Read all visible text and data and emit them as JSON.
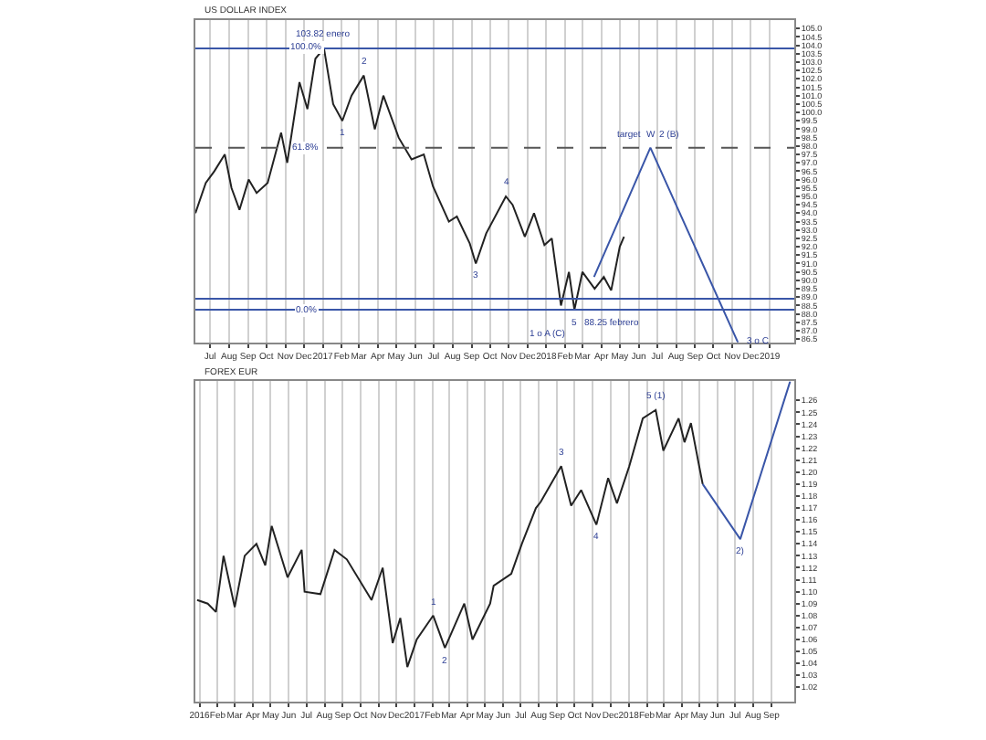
{
  "chart_data": [
    {
      "type": "line",
      "title": "US DOLLAR INDEX",
      "grid": "x",
      "xlim": [
        "2016-06-07",
        "2019-02-10"
      ],
      "ylim": [
        86.3,
        105.5
      ],
      "xticks": [
        {
          "value": "2016-07-01",
          "label": "Jul"
        },
        {
          "value": "2016-08-01",
          "label": "Aug"
        },
        {
          "value": "2016-09-01",
          "label": "Sep"
        },
        {
          "value": "2016-10-01",
          "label": "Oct"
        },
        {
          "value": "2016-11-01",
          "label": "Nov"
        },
        {
          "value": "2016-12-01",
          "label": "Dec"
        },
        {
          "value": "2017-01-01",
          "label": "2017"
        },
        {
          "value": "2017-02-01",
          "label": "Feb"
        },
        {
          "value": "2017-03-01",
          "label": "Mar"
        },
        {
          "value": "2017-04-01",
          "label": "Apr"
        },
        {
          "value": "2017-05-01",
          "label": "May"
        },
        {
          "value": "2017-06-01",
          "label": "Jun"
        },
        {
          "value": "2017-07-01",
          "label": "Jul"
        },
        {
          "value": "2017-08-01",
          "label": "Aug"
        },
        {
          "value": "2017-09-01",
          "label": "Sep"
        },
        {
          "value": "2017-10-01",
          "label": "Oct"
        },
        {
          "value": "2017-11-01",
          "label": "Nov"
        },
        {
          "value": "2017-12-01",
          "label": "Dec"
        },
        {
          "value": "2018-01-01",
          "label": "2018"
        },
        {
          "value": "2018-02-01",
          "label": "Feb"
        },
        {
          "value": "2018-03-01",
          "label": "Mar"
        },
        {
          "value": "2018-04-01",
          "label": "Apr"
        },
        {
          "value": "2018-05-01",
          "label": "May"
        },
        {
          "value": "2018-06-01",
          "label": "Jun"
        },
        {
          "value": "2018-07-01",
          "label": "Jul"
        },
        {
          "value": "2018-08-01",
          "label": "Aug"
        },
        {
          "value": "2018-09-01",
          "label": "Sep"
        },
        {
          "value": "2018-10-01",
          "label": "Oct"
        },
        {
          "value": "2018-11-01",
          "label": "Nov"
        },
        {
          "value": "2018-12-01",
          "label": "Dec"
        },
        {
          "value": "2019-01-01",
          "label": "2019"
        }
      ],
      "yticks": [
        {
          "value": 86.5,
          "label": "86.5"
        },
        {
          "value": 87,
          "label": "87.0"
        },
        {
          "value": 87.5,
          "label": "87.5"
        },
        {
          "value": 88,
          "label": "88.0"
        },
        {
          "value": 88.5,
          "label": "88.5"
        },
        {
          "value": 89,
          "label": "89.0"
        },
        {
          "value": 89.5,
          "label": "89.5"
        },
        {
          "value": 90,
          "label": "90.0"
        },
        {
          "value": 90.5,
          "label": "90.5"
        },
        {
          "value": 91,
          "label": "91.0"
        },
        {
          "value": 91.5,
          "label": "91.5"
        },
        {
          "value": 92,
          "label": "92.0"
        },
        {
          "value": 92.5,
          "label": "92.5"
        },
        {
          "value": 93,
          "label": "93.0"
        },
        {
          "value": 93.5,
          "label": "93.5"
        },
        {
          "value": 94,
          "label": "94.0"
        },
        {
          "value": 94.5,
          "label": "94.5"
        },
        {
          "value": 95,
          "label": "95.0"
        },
        {
          "value": 95.5,
          "label": "95.5"
        },
        {
          "value": 96,
          "label": "96.0"
        },
        {
          "value": 96.5,
          "label": "96.5"
        },
        {
          "value": 97,
          "label": "97.0"
        },
        {
          "value": 97.5,
          "label": "97.5"
        },
        {
          "value": 98,
          "label": "98.0"
        },
        {
          "value": 98.5,
          "label": "98.5"
        },
        {
          "value": 99,
          "label": "99.0"
        },
        {
          "value": 99.5,
          "label": "99.5"
        },
        {
          "value": 100,
          "label": "100.0"
        },
        {
          "value": 100.5,
          "label": "100.5"
        },
        {
          "value": 101,
          "label": "101.0"
        },
        {
          "value": 101.5,
          "label": "101.5"
        },
        {
          "value": 102,
          "label": "102.0"
        },
        {
          "value": 102.5,
          "label": "102.5"
        },
        {
          "value": 103,
          "label": "103.0"
        },
        {
          "value": 103.5,
          "label": "103.5"
        },
        {
          "value": 104,
          "label": "104.0"
        },
        {
          "value": 104.5,
          "label": "104.5"
        },
        {
          "value": 105,
          "label": "105.0"
        }
      ],
      "series": [
        {
          "color": "#222222",
          "x": [
            "2016-06-07",
            "2016-06-24",
            "2016-07-08",
            "2016-07-25",
            "2016-08-05",
            "2016-08-18",
            "2016-09-02",
            "2016-09-15",
            "2016-10-03",
            "2016-10-25",
            "2016-11-04",
            "2016-11-24",
            "2016-12-07",
            "2016-12-20",
            "2017-01-03",
            "2017-01-18",
            "2017-02-02",
            "2017-02-17",
            "2017-03-09",
            "2017-03-27",
            "2017-04-10",
            "2017-05-05",
            "2017-05-26",
            "2017-06-15",
            "2017-06-30",
            "2017-07-26",
            "2017-08-08",
            "2017-08-29",
            "2017-09-08",
            "2017-09-25",
            "2017-10-27",
            "2017-11-07",
            "2017-11-27",
            "2017-12-12",
            "2017-12-29",
            "2018-01-10",
            "2018-01-25",
            "2018-02-07",
            "2018-02-16",
            "2018-03-01",
            "2018-03-21",
            "2018-04-05",
            "2018-04-17",
            "2018-05-01",
            "2018-05-08"
          ],
          "values": [
            94.0,
            95.8,
            96.5,
            97.5,
            95.5,
            94.2,
            96.0,
            95.2,
            95.8,
            98.8,
            97.0,
            101.8,
            100.2,
            103.2,
            103.82,
            100.5,
            99.5,
            101.0,
            102.2,
            99.0,
            101.0,
            98.5,
            97.2,
            97.5,
            95.6,
            93.5,
            93.8,
            92.2,
            91.0,
            92.8,
            95.0,
            94.5,
            92.6,
            94.0,
            92.1,
            92.5,
            88.5,
            90.5,
            88.25,
            90.5,
            89.5,
            90.2,
            89.4,
            92.0,
            92.6
          ]
        },
        {
          "color": "#3a56a8",
          "x": [
            "2018-03-20",
            "2018-06-20",
            "2018-11-10"
          ],
          "values": [
            90.2,
            97.9,
            86.3
          ]
        }
      ],
      "ref_lines": [
        {
          "axis": "y",
          "value": 103.82,
          "color": "#3a56a8",
          "line_style": "solid"
        },
        {
          "axis": "y",
          "value": 97.9,
          "color": "#555555",
          "line_style": "dashed"
        },
        {
          "axis": "y",
          "value": 88.9,
          "color": "#3a56a8",
          "line_style": "solid"
        },
        {
          "axis": "y",
          "value": 88.25,
          "color": "#3a56a8",
          "line_style": "solid"
        }
      ],
      "annotations": [
        {
          "text": "100.0%",
          "x": "2016-12-05",
          "y": 103.82
        },
        {
          "text": "61.8%",
          "x": "2016-12-05",
          "y": 97.9
        },
        {
          "text": "0.0%",
          "x": "2016-12-05",
          "y": 88.25
        },
        {
          "text": "103.82 enero",
          "x": "2017-01-03",
          "y": 103.82
        },
        {
          "text": "1",
          "x": "2017-02-02",
          "y": 99.5
        },
        {
          "text": "2",
          "x": "2017-03-09",
          "y": 102.2
        },
        {
          "text": "3",
          "x": "2017-09-08",
          "y": 91.0
        },
        {
          "text": "4",
          "x": "2017-10-27",
          "y": 95.0
        },
        {
          "text": "5",
          "x": "2018-02-16",
          "y": 88.25
        },
        {
          "text": "88.25 febrero",
          "x": "2018-02-16",
          "y": 88.25
        },
        {
          "text": "1 o A (C)",
          "x": "2018-02-16",
          "y": 88.25
        },
        {
          "text": "W",
          "x": "2018-06-20",
          "y": 97.9
        },
        {
          "text": "2 (B)",
          "x": "2018-06-20",
          "y": 97.9
        },
        {
          "text": "target",
          "x": "2018-06-20",
          "y": 97.9
        },
        {
          "text": "3 o C",
          "x": "2018-11-10",
          "y": 86.3
        }
      ]
    },
    {
      "type": "line",
      "title": "FOREX EUR",
      "grid": "x",
      "xlim": [
        "2015-12-25",
        "2018-10-10"
      ],
      "ylim": [
        1.008,
        1.276
      ],
      "xticks": [
        {
          "value": "2016-01-01",
          "label": "2016"
        },
        {
          "value": "2016-02-01",
          "label": "Feb"
        },
        {
          "value": "2016-03-01",
          "label": "Mar"
        },
        {
          "value": "2016-04-01",
          "label": "Apr"
        },
        {
          "value": "2016-05-01",
          "label": "May"
        },
        {
          "value": "2016-06-01",
          "label": "Jun"
        },
        {
          "value": "2016-07-01",
          "label": "Jul"
        },
        {
          "value": "2016-08-01",
          "label": "Aug"
        },
        {
          "value": "2016-09-01",
          "label": "Sep"
        },
        {
          "value": "2016-10-01",
          "label": "Oct"
        },
        {
          "value": "2016-11-01",
          "label": "Nov"
        },
        {
          "value": "2016-12-01",
          "label": "Dec"
        },
        {
          "value": "2017-01-01",
          "label": "2017"
        },
        {
          "value": "2017-02-01",
          "label": "Feb"
        },
        {
          "value": "2017-03-01",
          "label": "Mar"
        },
        {
          "value": "2017-04-01",
          "label": "Apr"
        },
        {
          "value": "2017-05-01",
          "label": "May"
        },
        {
          "value": "2017-06-01",
          "label": "Jun"
        },
        {
          "value": "2017-07-01",
          "label": "Jul"
        },
        {
          "value": "2017-08-01",
          "label": "Aug"
        },
        {
          "value": "2017-09-01",
          "label": "Sep"
        },
        {
          "value": "2017-10-01",
          "label": "Oct"
        },
        {
          "value": "2017-11-01",
          "label": "Nov"
        },
        {
          "value": "2017-12-01",
          "label": "Dec"
        },
        {
          "value": "2018-01-01",
          "label": "2018"
        },
        {
          "value": "2018-02-01",
          "label": "Feb"
        },
        {
          "value": "2018-03-01",
          "label": "Mar"
        },
        {
          "value": "2018-04-01",
          "label": "Apr"
        },
        {
          "value": "2018-05-01",
          "label": "May"
        },
        {
          "value": "2018-06-01",
          "label": "Jun"
        },
        {
          "value": "2018-07-01",
          "label": "Jul"
        },
        {
          "value": "2018-08-01",
          "label": "Aug"
        },
        {
          "value": "2018-09-01",
          "label": "Sep"
        }
      ],
      "yticks": [
        {
          "value": 1.02,
          "label": "1.02"
        },
        {
          "value": 1.03,
          "label": "1.03"
        },
        {
          "value": 1.04,
          "label": "1.04"
        },
        {
          "value": 1.05,
          "label": "1.05"
        },
        {
          "value": 1.06,
          "label": "1.06"
        },
        {
          "value": 1.07,
          "label": "1.07"
        },
        {
          "value": 1.08,
          "label": "1.08"
        },
        {
          "value": 1.09,
          "label": "1.09"
        },
        {
          "value": 1.1,
          "label": "1.10"
        },
        {
          "value": 1.11,
          "label": "1.11"
        },
        {
          "value": 1.12,
          "label": "1.12"
        },
        {
          "value": 1.13,
          "label": "1.13"
        },
        {
          "value": 1.14,
          "label": "1.14"
        },
        {
          "value": 1.15,
          "label": "1.15"
        },
        {
          "value": 1.16,
          "label": "1.16"
        },
        {
          "value": 1.17,
          "label": "1.17"
        },
        {
          "value": 1.18,
          "label": "1.18"
        },
        {
          "value": 1.19,
          "label": "1.19"
        },
        {
          "value": 1.2,
          "label": "1.20"
        },
        {
          "value": 1.21,
          "label": "1.21"
        },
        {
          "value": 1.22,
          "label": "1.22"
        },
        {
          "value": 1.23,
          "label": "1.23"
        },
        {
          "value": 1.24,
          "label": "1.24"
        },
        {
          "value": 1.25,
          "label": "1.25"
        },
        {
          "value": 1.26,
          "label": "1.26"
        }
      ],
      "series": [
        {
          "color": "#222222",
          "x": [
            "2015-12-28",
            "2016-01-15",
            "2016-01-29",
            "2016-02-11",
            "2016-03-01",
            "2016-03-18",
            "2016-04-07",
            "2016-04-22",
            "2016-05-03",
            "2016-05-30",
            "2016-06-23",
            "2016-06-28",
            "2016-07-25",
            "2016-08-18",
            "2016-09-08",
            "2016-10-20",
            "2016-11-08",
            "2016-11-25",
            "2016-12-08",
            "2016-12-20",
            "2017-01-05",
            "2017-02-02",
            "2017-02-22",
            "2017-03-27",
            "2017-04-10",
            "2017-05-10",
            "2017-05-16",
            "2017-06-15",
            "2017-07-03",
            "2017-07-27",
            "2017-08-04",
            "2017-09-08",
            "2017-09-25",
            "2017-10-12",
            "2017-11-07",
            "2017-11-27",
            "2017-12-12",
            "2018-01-02",
            "2018-01-25",
            "2018-02-16",
            "2018-03-01",
            "2018-03-27",
            "2018-04-06",
            "2018-04-17",
            "2018-05-01",
            "2018-05-07"
          ],
          "values": [
            1.093,
            1.09,
            1.083,
            1.13,
            1.087,
            1.13,
            1.14,
            1.122,
            1.155,
            1.112,
            1.135,
            1.1,
            1.098,
            1.135,
            1.127,
            1.093,
            1.12,
            1.057,
            1.078,
            1.037,
            1.06,
            1.08,
            1.053,
            1.09,
            1.06,
            1.09,
            1.105,
            1.115,
            1.14,
            1.17,
            1.175,
            1.205,
            1.172,
            1.185,
            1.156,
            1.195,
            1.174,
            1.205,
            1.245,
            1.252,
            1.218,
            1.245,
            1.225,
            1.241,
            1.205,
            1.19
          ]
        },
        {
          "color": "#3a56a8",
          "x": [
            "2018-05-07",
            "2018-07-10",
            "2018-10-03"
          ],
          "values": [
            1.19,
            1.144,
            1.276
          ]
        }
      ],
      "annotations": [
        {
          "text": "1",
          "x": "2017-02-02",
          "y": 1.08
        },
        {
          "text": "2",
          "x": "2017-02-22",
          "y": 1.053
        },
        {
          "text": "3",
          "x": "2017-09-08",
          "y": 1.205
        },
        {
          "text": "4",
          "x": "2017-11-07",
          "y": 1.156
        },
        {
          "text": "5 (1)",
          "x": "2018-02-16",
          "y": 1.252
        },
        {
          "text": "2)",
          "x": "2018-07-10",
          "y": 1.144
        }
      ]
    }
  ]
}
